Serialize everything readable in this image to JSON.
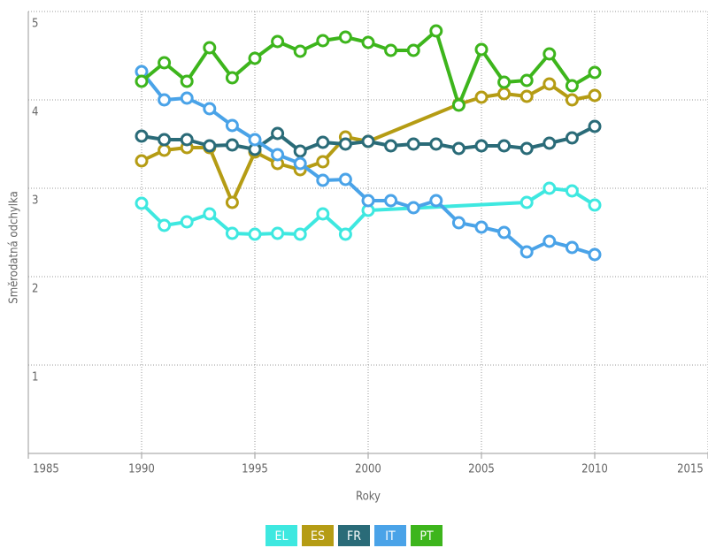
{
  "chart_data": {
    "type": "line",
    "xlabel": "Roky",
    "ylabel": "Směrodatná odchylka",
    "xlim": [
      1985,
      2015
    ],
    "xticks": [
      1985,
      1990,
      1995,
      2000,
      2005,
      2010,
      2015
    ],
    "ylim": [
      0,
      5
    ],
    "yticks": [
      1,
      2,
      3,
      4,
      5
    ],
    "grid": true,
    "legend": "bottom",
    "series": [
      {
        "name": "EL",
        "color": "#3ee8e0",
        "x": [
          1990,
          1991,
          1992,
          1993,
          1994,
          1995,
          1996,
          1997,
          1998,
          1999,
          2000,
          2007,
          2008,
          2009,
          2010
        ],
        "values": [
          2.83,
          2.58,
          2.62,
          2.71,
          2.49,
          2.48,
          2.49,
          2.48,
          2.71,
          2.48,
          2.75,
          2.84,
          3.0,
          2.97,
          2.81
        ]
      },
      {
        "name": "ES",
        "color": "#b59c14",
        "x": [
          1990,
          1991,
          1992,
          1993,
          1994,
          1995,
          1996,
          1997,
          1998,
          1999,
          2000,
          2004,
          2005,
          2006,
          2007,
          2008,
          2009,
          2010
        ],
        "values": [
          3.31,
          3.43,
          3.46,
          3.46,
          2.84,
          3.41,
          3.28,
          3.21,
          3.3,
          3.58,
          3.53,
          3.95,
          4.03,
          4.07,
          4.04,
          4.18,
          4.0,
          4.05
        ]
      },
      {
        "name": "FR",
        "color": "#2a6b78",
        "x": [
          1990,
          1991,
          1992,
          1993,
          1994,
          1995,
          1996,
          1997,
          1998,
          1999,
          2000,
          2001,
          2002,
          2003,
          2004,
          2005,
          2006,
          2007,
          2008,
          2009,
          2010
        ],
        "values": [
          3.59,
          3.55,
          3.55,
          3.48,
          3.49,
          3.44,
          3.62,
          3.42,
          3.52,
          3.5,
          3.53,
          3.48,
          3.5,
          3.5,
          3.45,
          3.48,
          3.48,
          3.45,
          3.51,
          3.57,
          3.7
        ]
      },
      {
        "name": "IT",
        "color": "#4aa3e8",
        "x": [
          1990,
          1991,
          1992,
          1993,
          1994,
          1995,
          1996,
          1997,
          1998,
          1999,
          2000,
          2001,
          2002,
          2003,
          2004,
          2005,
          2006,
          2007,
          2008,
          2009,
          2010
        ],
        "values": [
          4.32,
          4.0,
          4.02,
          3.9,
          3.71,
          3.55,
          3.38,
          3.28,
          3.09,
          3.1,
          2.86,
          2.86,
          2.78,
          2.86,
          2.61,
          2.56,
          2.5,
          2.28,
          2.4,
          2.33,
          2.25
        ]
      },
      {
        "name": "PT",
        "color": "#3db51c",
        "x": [
          1990,
          1991,
          1992,
          1993,
          1994,
          1995,
          1996,
          1997,
          1998,
          1999,
          2000,
          2001,
          2002,
          2003,
          2004,
          2005,
          2006,
          2007,
          2008,
          2009,
          2010
        ],
        "values": [
          4.21,
          4.42,
          4.21,
          4.59,
          4.25,
          4.47,
          4.66,
          4.55,
          4.67,
          4.71,
          4.65,
          4.56,
          4.56,
          4.78,
          3.94,
          4.57,
          4.2,
          4.22,
          4.52,
          4.16,
          4.31
        ]
      }
    ]
  }
}
